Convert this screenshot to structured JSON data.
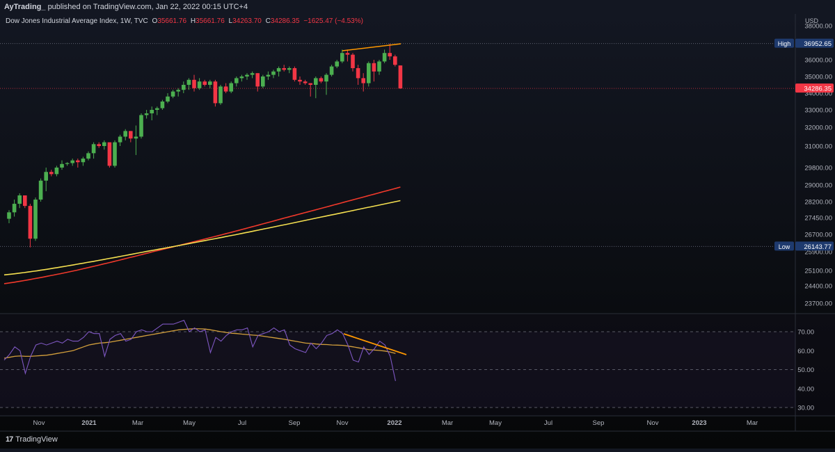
{
  "header": {
    "author": "AyTrading_",
    "published_text": "published on TradingView.com, Jan 22, 2022 00:15 UTC+4"
  },
  "legend": {
    "instrument": "Dow Jones Industrial Average Index, 1W, TVC",
    "open_label": "O",
    "open": "35661.76",
    "high_label": "H",
    "high": "35661.76",
    "low_label": "L",
    "low": "34263.70",
    "close_label": "C",
    "close": "34286.35",
    "change": "−1625.47 (−4.53%)"
  },
  "footer": {
    "brand": "TradingView",
    "logo": "17"
  },
  "colors": {
    "background": "#131722",
    "up": "#26a69a",
    "up_candle": "#4caf50",
    "down": "#f23645",
    "ma_red": "#f0392b",
    "ma_yellow": "#f5e050",
    "trendline": "#ff9800",
    "rsi_line": "#7e57c2",
    "rsi_ma": "#d4a03c",
    "label_blue": "#1e3a6e"
  },
  "chart_data": [
    {
      "type": "candlestick",
      "title": "Dow Jones Industrial Average Index, 1W, TVC",
      "currency": "USD",
      "ylim": [
        23200,
        38500
      ],
      "y_ticks": [
        "38000.00",
        "36000.00",
        "35000.00",
        "34000.00",
        "33000.00",
        "32000.00",
        "31000.00",
        "29800.00",
        "29000.00",
        "28200.00",
        "27450.00",
        "26700.00",
        "25900.00",
        "25100.00",
        "24400.00",
        "23700.00"
      ],
      "x_ticks": [
        "Nov",
        "2021",
        "Mar",
        "May",
        "Jul",
        "Sep",
        "Nov",
        "2022",
        "Mar",
        "May",
        "Jul",
        "Sep",
        "Nov",
        "2023",
        "Mar"
      ],
      "high_marker": {
        "label": "High",
        "value": "36952.65"
      },
      "low_marker": {
        "label": "Low",
        "value": "26143.77"
      },
      "last_price": "34286.35",
      "ohlc": [
        [
          27400,
          27800,
          27200,
          27700
        ],
        [
          27700,
          28300,
          27500,
          28100
        ],
        [
          28100,
          28600,
          27900,
          28500
        ],
        [
          28500,
          28500,
          27900,
          28000
        ],
        [
          28000,
          28100,
          26100,
          26500
        ],
        [
          26500,
          28400,
          26400,
          28300
        ],
        [
          28300,
          29300,
          28200,
          29200
        ],
        [
          29200,
          29800,
          28700,
          29600
        ],
        [
          29600,
          29700,
          29400,
          29500
        ],
        [
          29500,
          29900,
          29400,
          29800
        ],
        [
          29800,
          30200,
          29700,
          30000
        ],
        [
          30000,
          30100,
          29900,
          30050
        ],
        [
          30050,
          30300,
          29900,
          30200
        ],
        [
          30200,
          30300,
          29800,
          30100
        ],
        [
          30100,
          30400,
          29900,
          30300
        ],
        [
          30300,
          30700,
          30200,
          30600
        ],
        [
          30600,
          31200,
          30300,
          31100
        ],
        [
          31100,
          31200,
          30900,
          31000
        ],
        [
          31000,
          31300,
          30800,
          31200
        ],
        [
          31200,
          31100,
          29800,
          29900
        ],
        [
          29900,
          31300,
          29800,
          31200
        ],
        [
          31200,
          31600,
          31000,
          31500
        ],
        [
          31500,
          31900,
          31300,
          31800
        ],
        [
          31800,
          31800,
          31200,
          31400
        ],
        [
          31400,
          32100,
          30500,
          31500
        ],
        [
          31500,
          32800,
          31400,
          32700
        ],
        [
          32700,
          33000,
          32500,
          32800
        ],
        [
          32800,
          33200,
          32400,
          33000
        ],
        [
          33000,
          33200,
          32700,
          33100
        ],
        [
          33100,
          33600,
          33000,
          33500
        ],
        [
          33500,
          34000,
          33400,
          33800
        ],
        [
          33800,
          34200,
          33700,
          34100
        ],
        [
          34100,
          34300,
          33800,
          34200
        ],
        [
          34200,
          34700,
          34000,
          34500
        ],
        [
          34500,
          34900,
          34200,
          34800
        ],
        [
          34800,
          35100,
          34100,
          34300
        ],
        [
          34300,
          34900,
          34200,
          34700
        ],
        [
          34700,
          34800,
          34400,
          34500
        ],
        [
          34500,
          34800,
          34300,
          34700
        ],
        [
          34700,
          34800,
          33200,
          33400
        ],
        [
          33400,
          34500,
          33300,
          34400
        ],
        [
          34400,
          34600,
          34000,
          34100
        ],
        [
          34100,
          34700,
          34000,
          34600
        ],
        [
          34600,
          35000,
          34400,
          34900
        ],
        [
          34900,
          35100,
          34700,
          35000
        ],
        [
          35000,
          35200,
          34800,
          35100
        ],
        [
          35100,
          35300,
          34900,
          35200
        ],
        [
          35200,
          35200,
          34100,
          34400
        ],
        [
          34400,
          35100,
          34300,
          35000
        ],
        [
          35000,
          35300,
          34800,
          35100
        ],
        [
          35100,
          35400,
          34900,
          35300
        ],
        [
          35300,
          35600,
          35000,
          35500
        ],
        [
          35500,
          35700,
          35300,
          35400
        ],
        [
          35400,
          35600,
          35200,
          35500
        ],
        [
          35500,
          35600,
          34700,
          34800
        ],
        [
          34800,
          35000,
          34500,
          34700
        ],
        [
          34700,
          34800,
          34500,
          34600
        ],
        [
          34600,
          34600,
          33800,
          34500
        ],
        [
          34500,
          35000,
          33700,
          34900
        ],
        [
          34900,
          35000,
          34600,
          34700
        ],
        [
          34700,
          35200,
          33900,
          35100
        ],
        [
          35100,
          35700,
          35000,
          35600
        ],
        [
          35600,
          36000,
          35500,
          35900
        ],
        [
          35900,
          36600,
          35800,
          36400
        ],
        [
          36400,
          36600,
          35900,
          36300
        ],
        [
          36300,
          36400,
          35300,
          35500
        ],
        [
          35500,
          35700,
          34500,
          34900
        ],
        [
          34900,
          35200,
          34100,
          34600
        ],
        [
          34600,
          35900,
          34400,
          35800
        ],
        [
          35800,
          36000,
          34700,
          35300
        ],
        [
          35300,
          36000,
          35100,
          35900
        ],
        [
          35900,
          36600,
          35800,
          36400
        ],
        [
          36400,
          36952,
          36000,
          36200
        ],
        [
          36200,
          36300,
          35600,
          35700
        ],
        [
          35661.76,
          35661.76,
          34263.7,
          34286.35
        ]
      ],
      "moving_averages": [
        {
          "color": "red",
          "start": 24500,
          "end": 28900
        },
        {
          "color": "yellow",
          "start": 24900,
          "end": 28250
        }
      ]
    },
    {
      "type": "line",
      "name": "RSI",
      "ylim": [
        25,
        78
      ],
      "y_ticks": [
        "70.00",
        "60.00",
        "50.00",
        "40.00",
        "30.00"
      ],
      "levels": [
        70,
        50,
        30
      ],
      "rsi": [
        55,
        58,
        62,
        60,
        48,
        57,
        63,
        64,
        63,
        64,
        65,
        64,
        66,
        65,
        65,
        67,
        70,
        69,
        69,
        57,
        66,
        68,
        69,
        65,
        66,
        70,
        71,
        70,
        70,
        72,
        74,
        74,
        74,
        75,
        76,
        70,
        72,
        70,
        71,
        59,
        67,
        65,
        68,
        70,
        71,
        71,
        72,
        62,
        68,
        69,
        70,
        72,
        70,
        71,
        63,
        61,
        60,
        59,
        64,
        61,
        64,
        68,
        69,
        71,
        69,
        63,
        55,
        54,
        62,
        58,
        61,
        65,
        63,
        57,
        44
      ],
      "rsi_ma": [
        56,
        56.5,
        57,
        57.2,
        57,
        57,
        57.2,
        57.4,
        57.6,
        58,
        58.5,
        59,
        59.5,
        60,
        61,
        62,
        63,
        63.5,
        64,
        64.2,
        64.5,
        65,
        65.5,
        66,
        66.5,
        67,
        67.5,
        68,
        68.5,
        69,
        69.5,
        70,
        70.5,
        71,
        71.2,
        71.4,
        71.6,
        71.5,
        71.4,
        71,
        70.5,
        70,
        69.6,
        69.2,
        69,
        68.7,
        68.5,
        68.2,
        68,
        67.6,
        67.2,
        66.8,
        66.4,
        66,
        65.5,
        65,
        64.5,
        64,
        63.8,
        63.5,
        63.3,
        63.2,
        63,
        62.9,
        62.8,
        62.4,
        62,
        61.5,
        61,
        60.5,
        60.3,
        60.1,
        59.8,
        59.3,
        58.5
      ]
    }
  ]
}
